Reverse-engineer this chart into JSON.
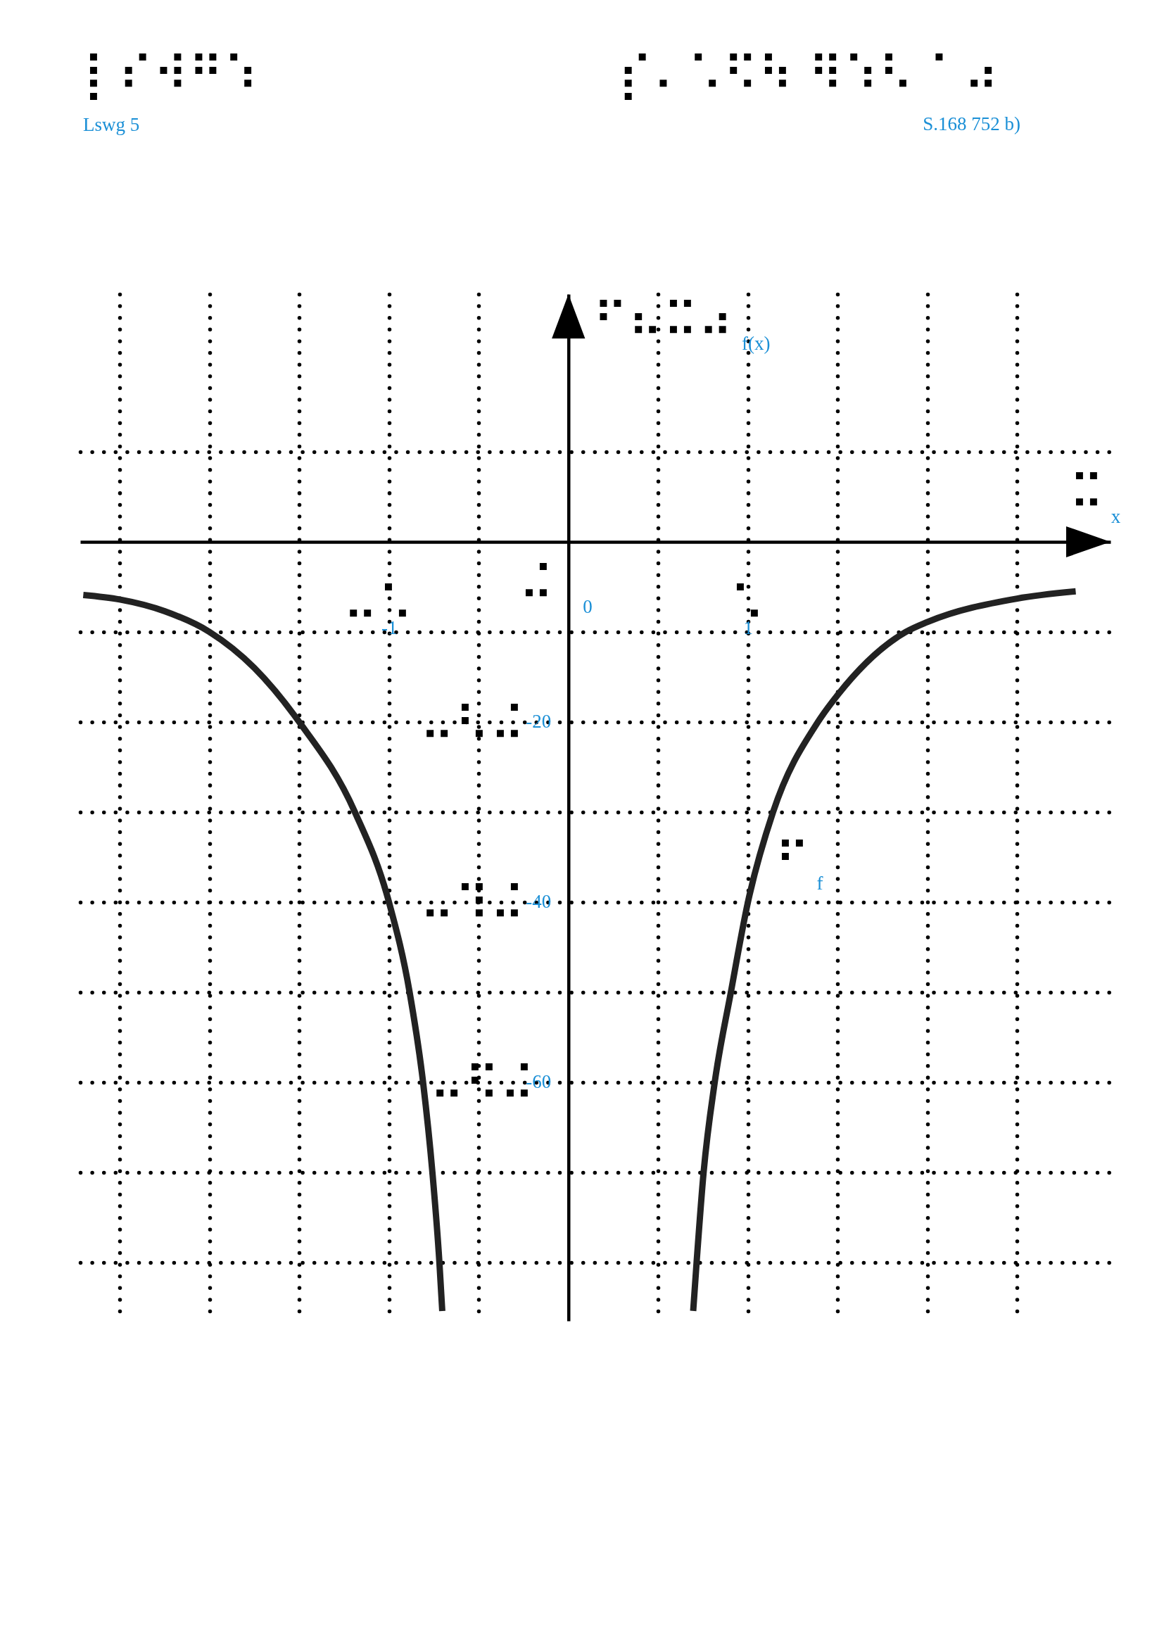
{
  "chart_data": {
    "type": "line",
    "xlabel": "x",
    "ylabel": "f(x)",
    "annotations": [
      "⡇⠎⠺⠛⠱",
      "Lswg 5",
      "⡎⠄⠡⠫⠳ ⠻⠱⠣ ⠁⠴",
      "S.168 752 b)",
      "⠋⠦⠭⠴",
      "⠭",
      "⠬",
      "0",
      "⠤⠡",
      "⠡",
      "⠤⠣⠬",
      "⠤⠹⠬",
      "⠤⠫⠬",
      "⠋",
      "f"
    ],
    "series": [
      {
        "color": "#222222",
        "x": [
          -2.703,
          -2.5,
          -2.25,
          -2.0,
          -1.75,
          -1.5,
          -1.19,
          -1.0,
          -0.885,
          -0.81,
          -0.758,
          -0.719,
          -0.703
        ],
        "values": [
          -5.9,
          -6.4,
          -7.7,
          -10,
          -14,
          -20,
          -30,
          -40,
          -50,
          -60,
          -70,
          -80,
          -85.4
        ]
      },
      {
        "color": "#222222",
        "x": [
          0.695,
          0.714,
          0.753,
          0.815,
          0.905,
          1.0,
          1.14,
          1.39,
          1.5,
          1.88,
          2.0,
          2.5,
          2.826
        ],
        "values": [
          -85.4,
          -80,
          -70,
          -60,
          -50,
          -40,
          -30,
          -20,
          -17,
          -10,
          -8.9,
          -6.3,
          -5.5
        ]
      }
    ],
    "xlim": [
      -2.72,
      3.02
    ],
    "ylim": [
      -86.5,
      27.5
    ],
    "xticks": [
      {
        "value": -2.5,
        "label": null
      },
      {
        "value": -2,
        "label": null
      },
      {
        "value": -1.5,
        "label": null
      },
      {
        "value": -1,
        "label": "-1"
      },
      {
        "value": -0.5,
        "label": null
      },
      {
        "value": 0.5,
        "label": null
      },
      {
        "value": 1,
        "label": "1"
      },
      {
        "value": 1.5,
        "label": null
      },
      {
        "value": 2,
        "label": null
      },
      {
        "value": 2.5,
        "label": null
      }
    ],
    "yticks": [
      {
        "value": 10,
        "label": null
      },
      {
        "value": -10,
        "label": null
      },
      {
        "value": -20,
        "label": "-20"
      },
      {
        "value": -30,
        "label": null
      },
      {
        "value": -40,
        "label": "-40"
      },
      {
        "value": -50,
        "label": null
      },
      {
        "value": -60,
        "label": "-60"
      },
      {
        "value": -70,
        "label": null
      },
      {
        "value": -80,
        "label": null
      }
    ],
    "grid": true
  }
}
